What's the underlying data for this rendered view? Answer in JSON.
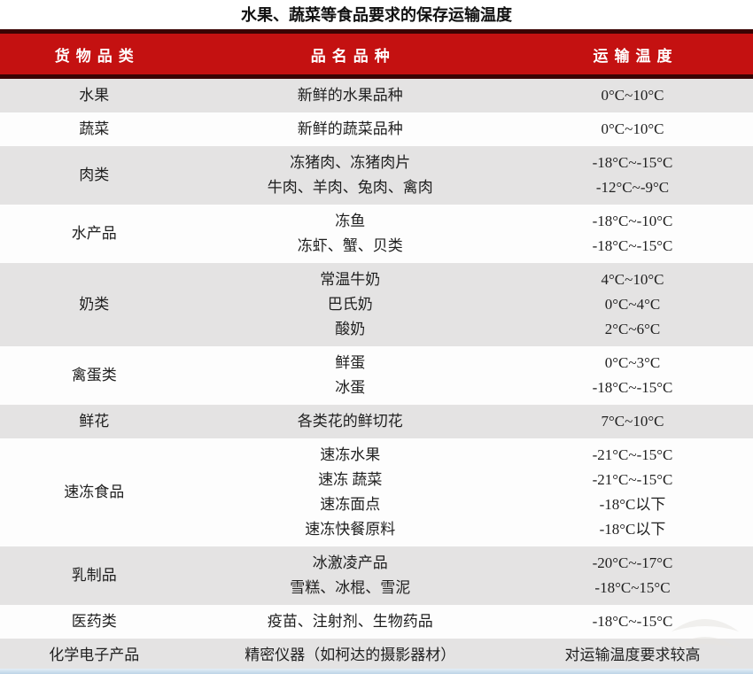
{
  "title": "水果、蔬菜等食品要求的保存运输温度",
  "table": {
    "headers": [
      "货物品类",
      "品名品种",
      "运输温度"
    ],
    "rows": [
      {
        "category": "水果",
        "items": [
          "新鲜的水果品种"
        ],
        "temps": [
          "0°C~10°C"
        ]
      },
      {
        "category": "蔬菜",
        "items": [
          "新鲜的蔬菜品种"
        ],
        "temps": [
          "0°C~10°C"
        ]
      },
      {
        "category": "肉类",
        "items": [
          "冻猪肉、冻猪肉片",
          "牛肉、羊肉、兔肉、禽肉"
        ],
        "temps": [
          "-18°C~-15°C",
          "-12°C~-9°C"
        ]
      },
      {
        "category": "水产品",
        "items": [
          "冻鱼",
          "冻虾、蟹、贝类"
        ],
        "temps": [
          "-18°C~-10°C",
          "-18°C~-15°C"
        ]
      },
      {
        "category": "奶类",
        "items": [
          "常温牛奶",
          "巴氏奶",
          "酸奶"
        ],
        "temps": [
          "4°C~10°C",
          "0°C~4°C",
          "2°C~6°C"
        ]
      },
      {
        "category": "禽蛋类",
        "items": [
          "鲜蛋",
          "冰蛋"
        ],
        "temps": [
          "0°C~3°C",
          "-18°C~-15°C"
        ]
      },
      {
        "category": "鲜花",
        "items": [
          "各类花的鲜切花"
        ],
        "temps": [
          "7°C~10°C"
        ]
      },
      {
        "category": "速冻食品",
        "items": [
          "速冻水果",
          "速冻 蔬菜",
          "速冻面点",
          "速冻快餐原料"
        ],
        "temps": [
          "-21°C~-15°C",
          "-21°C~-15°C",
          "-18°C以下",
          "-18°C以下"
        ]
      },
      {
        "category": "乳制品",
        "items": [
          "冰激凌产品",
          "雪糕、冰棍、雪泥"
        ],
        "temps": [
          "-20°C~-17°C",
          "-18°C~15°C"
        ]
      },
      {
        "category": "医药类",
        "items": [
          "疫苗、注射剂、生物药品"
        ],
        "temps": [
          "-18°C~-15°C"
        ]
      },
      {
        "category": "化学电子产品",
        "items": [
          "精密仪器（如柯达的摄影器材）"
        ],
        "temps": [
          "对运输温度要求较高"
        ]
      }
    ]
  },
  "icons": {
    "watermark": "double-chevron-watermark-icon"
  },
  "colors": {
    "header_red": "#c41111",
    "header_dark": "#3a0404",
    "header_text": "#ffffff",
    "row_shade": "#e4e3e3",
    "row_plain": "#fdfdfd",
    "body_text": "#1f1f1f",
    "bottom_strip": "#bcd4e6",
    "watermark_gray": "#e6e4e0"
  }
}
